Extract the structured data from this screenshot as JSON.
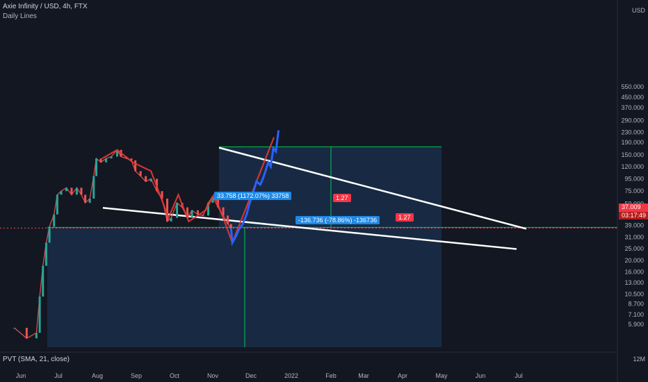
{
  "header": {
    "title": "Axie Infinity / USD, 4h, FTX",
    "subtitle": "Daily Lines",
    "usd_label": "USD"
  },
  "indicator": {
    "label": "PVT (SMA, 21, close)",
    "value_label": "12M"
  },
  "measure_tools": [
    {
      "label": "33.758 (1172.07%) 33758",
      "color": "#2962ff"
    },
    {
      "label": "-136.736 (-78.86%) -136736",
      "color": "#2962ff"
    }
  ],
  "fib_tags": [
    "1.27",
    "1.27"
  ],
  "last_price": {
    "value": "37.009",
    "countdown": "03:17:49",
    "color": "#f23645"
  },
  "colors": {
    "background": "#131722",
    "up": "#26a69a",
    "down": "#ef5350",
    "ema_fast": "#e53935",
    "ema_slow": "#43a047",
    "sma_blue": "#2962ff",
    "projection": "#2962ff",
    "trendline": "#ffffff",
    "measure_box": "#1e3a5f",
    "measure_line": "#00c853"
  },
  "chart_data": {
    "type": "line",
    "title": "Axie Infinity / USD, 4h, FTX",
    "y_scale": "log",
    "ylim": [
      5.9,
      550
    ],
    "y_ticks": [
      "550.000",
      "450.000",
      "370.000",
      "290.000",
      "230.000",
      "190.000",
      "150.000",
      "120.000",
      "95.000",
      "75.000",
      "59.000",
      "49.000",
      "39.000",
      "31.000",
      "25.000",
      "20.000",
      "16.000",
      "13.000",
      "10.500",
      "8.700",
      "7.100",
      "5.900"
    ],
    "x_ticks": [
      "Jun",
      "Jul",
      "Aug",
      "Sep",
      "Oct",
      "Nov",
      "Dec",
      "2022",
      "Feb",
      "Mar",
      "Apr",
      "May",
      "Jun",
      "Jul"
    ],
    "series": [
      {
        "name": "",
        "values": [
          [
            "2021-06-01",
            5.5
          ],
          [
            "2021-06-20",
            4.5
          ],
          [
            "2021-07-05",
            5.0
          ],
          [
            "2021-07-10",
            10.0
          ],
          [
            "2021-07-15",
            18.0
          ],
          [
            "2021-07-20",
            28.0
          ],
          [
            "2021-07-25",
            38.0
          ],
          [
            "2021-08-01",
            48.0
          ],
          [
            "2021-08-06",
            70.0
          ],
          [
            "2021-08-12",
            75.0
          ],
          [
            "2021-08-20",
            80.0
          ],
          [
            "2021-08-28",
            70.0
          ],
          [
            "2021-09-05",
            80.0
          ],
          [
            "2021-09-12",
            70.0
          ],
          [
            "2021-09-18",
            60.0
          ],
          [
            "2021-09-25",
            65.0
          ],
          [
            "2021-10-01",
            100.0
          ],
          [
            "2021-10-05",
            140.0
          ],
          [
            "2021-10-12",
            130.0
          ],
          [
            "2021-10-20",
            140.0
          ],
          [
            "2021-10-28",
            145.0
          ],
          [
            "2021-11-06",
            165.0
          ],
          [
            "2021-11-12",
            145.0
          ],
          [
            "2021-11-20",
            140.0
          ],
          [
            "2021-11-28",
            135.0
          ],
          [
            "2021-12-04",
            110.0
          ],
          [
            "2021-12-12",
            100.0
          ],
          [
            "2021-12-20",
            90.0
          ],
          [
            "2021-12-28",
            95.0
          ],
          [
            "2022-01-06",
            75.0
          ],
          [
            "2022-01-14",
            65.0
          ],
          [
            "2022-01-22",
            42.0
          ],
          [
            "2022-01-28",
            45.0
          ],
          [
            "2022-02-06",
            60.0
          ],
          [
            "2022-02-14",
            55.0
          ],
          [
            "2022-02-22",
            45.0
          ],
          [
            "2022-03-01",
            52.0
          ],
          [
            "2022-03-10",
            48.0
          ],
          [
            "2022-03-18",
            47.0
          ],
          [
            "2022-03-26",
            60.0
          ],
          [
            "2022-04-02",
            68.0
          ],
          [
            "2022-04-10",
            55.0
          ],
          [
            "2022-04-18",
            47.0
          ],
          [
            "2022-04-25",
            40.0
          ],
          [
            "2022-04-30",
            37.0
          ]
        ]
      },
      {
        "name": "",
        "values": [
          [
            "2021-10-14",
            140.0
          ],
          [
            "2021-11-06",
            165.0
          ],
          [
            "2021-11-30",
            130.0
          ],
          [
            "2021-12-28",
            110.0
          ],
          [
            "2022-01-24",
            45.0
          ],
          [
            "2022-02-08",
            70.0
          ],
          [
            "2022-02-24",
            42.0
          ],
          [
            "2022-03-22",
            52.0
          ],
          [
            "2022-04-04",
            70.0
          ],
          [
            "2022-04-18",
            45.0
          ],
          [
            "2022-05-02",
            28.0
          ],
          [
            "2022-07-05",
            210.0
          ]
        ]
      },
      {
        "name": "",
        "values": [
          [
            "2022-04-30",
            37.0
          ],
          [
            "2022-05-02",
            28.0
          ],
          [
            "2022-05-08",
            32.0
          ],
          [
            "2022-05-12",
            36.0
          ],
          [
            "2022-05-18",
            40.0
          ],
          [
            "2022-05-24",
            48.0
          ],
          [
            "2022-05-28",
            58.0
          ],
          [
            "2022-06-02",
            70.0
          ],
          [
            "2022-06-08",
            90.0
          ],
          [
            "2022-06-14",
            85.0
          ],
          [
            "2022-06-18",
            95.0
          ],
          [
            "2022-06-22",
            110.0
          ],
          [
            "2022-06-26",
            130.0
          ],
          [
            "2022-06-30",
            120.0
          ],
          [
            "2022-07-04",
            170.0
          ],
          [
            "2022-07-08",
            160.0
          ],
          [
            "2022-07-12",
            240.0
          ]
        ]
      }
    ],
    "grid": false
  }
}
